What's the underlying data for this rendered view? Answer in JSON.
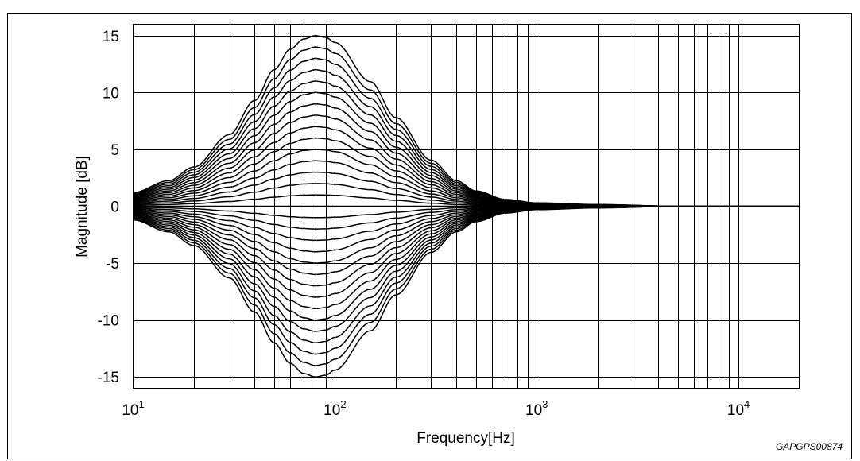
{
  "figure_code": "GAPGPS00874",
  "chart_data": {
    "type": "line",
    "title": "",
    "xlabel": "Frequency[Hz]",
    "ylabel": "Magnitude [dB]",
    "xscale": "log",
    "xlim": [
      10,
      20000
    ],
    "ylim": [
      -16,
      16
    ],
    "grid": true,
    "legend": "none",
    "x_ticks": [
      {
        "value": 10,
        "base": "10",
        "exp": "1"
      },
      {
        "value": 100,
        "base": "10",
        "exp": "2"
      },
      {
        "value": 1000,
        "base": "10",
        "exp": "3"
      },
      {
        "value": 10000,
        "base": "10",
        "exp": "4"
      }
    ],
    "y_ticks": [
      {
        "value": 15,
        "label": "15"
      },
      {
        "value": 10,
        "label": "10"
      },
      {
        "value": 5,
        "label": "5"
      },
      {
        "value": 0,
        "label": "0"
      },
      {
        "value": -5,
        "label": "-5"
      },
      {
        "value": -10,
        "label": "-10"
      },
      {
        "value": -15,
        "label": "-15"
      }
    ],
    "center_frequency_hz": 80,
    "series_peak_gains_db": [
      -15,
      -14,
      -13,
      -12,
      -11,
      -10,
      -9,
      -8,
      -7,
      -6,
      -5,
      -4,
      -3,
      -2,
      -1,
      0,
      1,
      2,
      3,
      4,
      5,
      6,
      7,
      8,
      9,
      10,
      11,
      12,
      13,
      14,
      15
    ],
    "frequency_hz": [
      10,
      15,
      20,
      30,
      40,
      50,
      60,
      70,
      80,
      90,
      100,
      150,
      200,
      300,
      400,
      500,
      700,
      1000,
      2000,
      5000,
      10000,
      20000
    ],
    "normalized_response": [
      0.08,
      0.15,
      0.23,
      0.42,
      0.62,
      0.8,
      0.92,
      0.98,
      1.0,
      0.99,
      0.96,
      0.73,
      0.52,
      0.27,
      0.15,
      0.09,
      0.04,
      0.02,
      0.01,
      0.0,
      0.0,
      0.0
    ]
  }
}
